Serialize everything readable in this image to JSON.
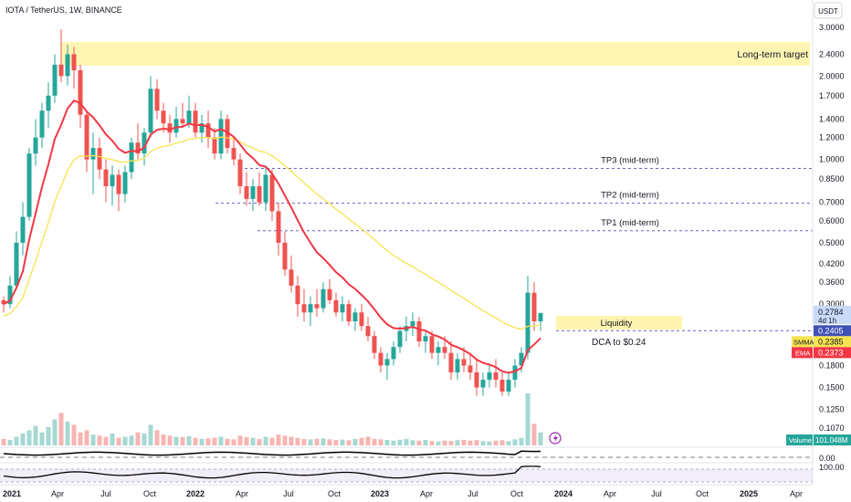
{
  "header": {
    "title": "IOTA / TetherUS, 1W, BINANCE",
    "currency_button": "USDT"
  },
  "chart_data": {
    "type": "candlestick",
    "price_axis_ticks": [
      3.0,
      2.4,
      2.0,
      1.7,
      1.4,
      1.2,
      1.0,
      0.85,
      0.7,
      0.6,
      0.5,
      0.42,
      0.36,
      0.3,
      0.18,
      0.15,
      0.125,
      0.107
    ],
    "time_axis_ticks": [
      "2021",
      "Apr",
      "Jul",
      "Oct",
      "2022",
      "Apr",
      "Jul",
      "Oct",
      "2023",
      "Apr",
      "Jul",
      "Oct",
      "2024",
      "Apr",
      "Jul",
      "Oct",
      "2025",
      "Apr"
    ],
    "annotations": {
      "long_term_target": "Long-term target",
      "tp3": {
        "label": "TP3 (mid-term)",
        "value": "0.9284",
        "price": 0.9284
      },
      "tp2": {
        "label": "TP2 (mid-term)",
        "value": "0.6947",
        "price": 0.6947
      },
      "tp1": {
        "label": "TP1 (mid-term)",
        "value": "0.5523",
        "price": 0.5523
      },
      "liquidity": "Liquidity",
      "dca": "DCA to $0.24",
      "dca_price": 0.2405
    },
    "price_tags": {
      "last": {
        "value": "0.2784",
        "price": 0.2784,
        "color": "#5b9cf6"
      },
      "countdown": "4d 1h",
      "dca_tag": {
        "value": "0.2405",
        "color": "#3f51b5"
      },
      "sma": {
        "name": "SMMA",
        "value": "0.2385",
        "color": "#f7e34f"
      },
      "ema": {
        "name": "EMA",
        "value": "0.2373",
        "color": "#f23645"
      }
    },
    "volume_tag": {
      "name": "Volume",
      "value": "101.048M"
    },
    "oscillator_ticks": {
      "zero": "0.00",
      "hundred": "100.00"
    },
    "colors": {
      "up": "#26a69a",
      "down": "#ef5350",
      "ema": "#f23645",
      "smma": "#f7e34f"
    },
    "ohlc_points": [
      [
        0,
        "2021-01",
        0.31,
        0.32,
        0.28,
        0.3
      ],
      [
        1,
        "",
        0.3,
        0.38,
        0.29,
        0.35
      ],
      [
        2,
        "",
        0.35,
        0.55,
        0.34,
        0.5
      ],
      [
        3,
        "",
        0.5,
        0.7,
        0.45,
        0.62
      ],
      [
        4,
        "",
        0.62,
        1.1,
        0.6,
        1.05
      ],
      [
        5,
        "",
        1.05,
        1.4,
        0.95,
        1.2
      ],
      [
        6,
        "",
        1.2,
        1.6,
        1.1,
        1.5
      ],
      [
        7,
        "",
        1.5,
        1.9,
        1.3,
        1.7
      ],
      [
        8,
        "",
        1.7,
        2.4,
        1.6,
        2.2
      ],
      [
        9,
        "",
        2.2,
        2.95,
        1.9,
        2.0
      ],
      [
        10,
        "",
        2.0,
        2.6,
        1.85,
        2.4
      ],
      [
        11,
        "",
        2.4,
        2.55,
        1.8,
        2.1
      ],
      [
        12,
        "",
        2.1,
        2.2,
        1.3,
        1.45
      ],
      [
        13,
        "",
        1.45,
        1.5,
        0.9,
        1.0
      ],
      [
        14,
        "",
        1.0,
        1.25,
        0.75,
        1.1
      ],
      [
        15,
        "",
        1.1,
        1.2,
        0.85,
        0.92
      ],
      [
        16,
        "",
        0.92,
        1.0,
        0.7,
        0.8
      ],
      [
        17,
        "",
        0.8,
        0.95,
        0.68,
        0.88
      ],
      [
        18,
        "",
        0.88,
        0.92,
        0.65,
        0.75
      ],
      [
        19,
        "",
        0.75,
        0.95,
        0.7,
        0.9
      ],
      [
        20,
        "",
        0.9,
        1.2,
        0.85,
        1.15
      ],
      [
        21,
        "",
        1.15,
        1.35,
        1.0,
        1.05
      ],
      [
        22,
        "",
        1.05,
        1.3,
        0.95,
        1.25
      ],
      [
        23,
        "",
        1.25,
        2.0,
        1.2,
        1.8
      ],
      [
        24,
        "",
        1.8,
        1.95,
        1.4,
        1.5
      ],
      [
        25,
        "",
        1.5,
        1.6,
        1.25,
        1.35
      ],
      [
        26,
        "",
        1.35,
        1.45,
        1.15,
        1.25
      ],
      [
        27,
        "",
        1.25,
        1.55,
        1.2,
        1.4
      ],
      [
        28,
        "",
        1.4,
        1.6,
        1.3,
        1.35
      ],
      [
        29,
        "",
        1.35,
        1.7,
        1.3,
        1.5
      ],
      [
        30,
        "",
        1.5,
        1.6,
        1.2,
        1.25
      ],
      [
        31,
        "",
        1.25,
        1.45,
        1.15,
        1.35
      ],
      [
        32,
        "",
        1.35,
        1.5,
        1.1,
        1.2
      ],
      [
        33,
        "",
        1.2,
        1.3,
        1.0,
        1.05
      ],
      [
        34,
        "",
        1.05,
        1.5,
        1.0,
        1.4
      ],
      [
        35,
        "",
        1.4,
        1.45,
        1.05,
        1.1
      ],
      [
        36,
        "",
        1.1,
        1.2,
        0.95,
        1.0
      ],
      [
        37,
        "",
        1.0,
        1.05,
        0.75,
        0.8
      ],
      [
        38,
        "",
        0.8,
        0.9,
        0.68,
        0.72
      ],
      [
        39,
        "",
        0.72,
        0.85,
        0.65,
        0.8
      ],
      [
        40,
        "",
        0.8,
        0.9,
        0.68,
        0.7
      ],
      [
        41,
        "",
        0.7,
        0.95,
        0.65,
        0.88
      ],
      [
        42,
        "",
        0.88,
        0.92,
        0.6,
        0.65
      ],
      [
        43,
        "",
        0.65,
        0.7,
        0.45,
        0.5
      ],
      [
        44,
        "",
        0.5,
        0.55,
        0.38,
        0.4
      ],
      [
        45,
        "",
        0.4,
        0.45,
        0.33,
        0.35
      ],
      [
        46,
        "",
        0.35,
        0.38,
        0.27,
        0.3
      ],
      [
        47,
        "",
        0.3,
        0.34,
        0.26,
        0.28
      ],
      [
        48,
        "",
        0.28,
        0.32,
        0.25,
        0.3
      ],
      [
        49,
        "",
        0.3,
        0.34,
        0.27,
        0.29
      ],
      [
        50,
        "",
        0.29,
        0.36,
        0.28,
        0.34
      ],
      [
        51,
        "",
        0.34,
        0.37,
        0.3,
        0.31
      ],
      [
        52,
        "",
        0.31,
        0.33,
        0.27,
        0.28
      ],
      [
        53,
        "",
        0.28,
        0.32,
        0.26,
        0.3
      ],
      [
        54,
        "",
        0.3,
        0.31,
        0.25,
        0.26
      ],
      [
        55,
        "",
        0.26,
        0.29,
        0.24,
        0.28
      ],
      [
        56,
        "",
        0.28,
        0.3,
        0.24,
        0.25
      ],
      [
        57,
        "",
        0.25,
        0.27,
        0.22,
        0.23
      ],
      [
        58,
        "",
        0.23,
        0.24,
        0.19,
        0.2
      ],
      [
        59,
        "",
        0.2,
        0.21,
        0.17,
        0.18
      ],
      [
        60,
        "",
        0.18,
        0.2,
        0.16,
        0.19
      ],
      [
        61,
        "",
        0.19,
        0.22,
        0.18,
        0.21
      ],
      [
        62,
        "",
        0.21,
        0.25,
        0.2,
        0.24
      ],
      [
        63,
        "",
        0.24,
        0.27,
        0.22,
        0.25
      ],
      [
        64,
        "",
        0.25,
        0.28,
        0.23,
        0.26
      ],
      [
        65,
        "",
        0.26,
        0.27,
        0.21,
        0.22
      ],
      [
        66,
        "",
        0.22,
        0.24,
        0.2,
        0.23
      ],
      [
        67,
        "",
        0.23,
        0.24,
        0.19,
        0.2
      ],
      [
        68,
        "",
        0.2,
        0.22,
        0.18,
        0.21
      ],
      [
        69,
        "",
        0.21,
        0.23,
        0.19,
        0.2
      ],
      [
        70,
        "",
        0.2,
        0.22,
        0.16,
        0.17
      ],
      [
        71,
        "",
        0.17,
        0.2,
        0.16,
        0.19
      ],
      [
        72,
        "",
        0.19,
        0.21,
        0.17,
        0.18
      ],
      [
        73,
        "",
        0.18,
        0.2,
        0.16,
        0.17
      ],
      [
        74,
        "",
        0.17,
        0.19,
        0.14,
        0.15
      ],
      [
        75,
        "",
        0.15,
        0.17,
        0.14,
        0.16
      ],
      [
        76,
        "",
        0.16,
        0.18,
        0.15,
        0.17
      ],
      [
        77,
        "",
        0.17,
        0.19,
        0.15,
        0.16
      ],
      [
        78,
        "",
        0.16,
        0.17,
        0.14,
        0.145
      ],
      [
        79,
        "",
        0.145,
        0.17,
        0.14,
        0.16
      ],
      [
        80,
        "",
        0.16,
        0.19,
        0.15,
        0.18
      ],
      [
        81,
        "",
        0.18,
        0.21,
        0.17,
        0.2
      ],
      [
        82,
        "",
        0.2,
        0.38,
        0.19,
        0.33
      ],
      [
        83,
        "",
        0.33,
        0.36,
        0.24,
        0.26
      ],
      [
        84,
        "",
        0.26,
        0.28,
        0.24,
        0.2784
      ]
    ],
    "volume_values": [
      30,
      25,
      40,
      55,
      70,
      90,
      60,
      85,
      120,
      150,
      110,
      95,
      60,
      70,
      50,
      45,
      40,
      55,
      35,
      40,
      45,
      60,
      55,
      95,
      70,
      50,
      45,
      40,
      38,
      42,
      35,
      30,
      32,
      35,
      40,
      30,
      28,
      45,
      38,
      35,
      30,
      40,
      35,
      50,
      45,
      40,
      35,
      30,
      28,
      30,
      32,
      28,
      25,
      27,
      24,
      30,
      35,
      40,
      30,
      28,
      25,
      22,
      26,
      30,
      24,
      22,
      25,
      20,
      18,
      22,
      20,
      24,
      26,
      22,
      25,
      20,
      18,
      22,
      24,
      20,
      28,
      35,
      240,
      100,
      60
    ]
  }
}
